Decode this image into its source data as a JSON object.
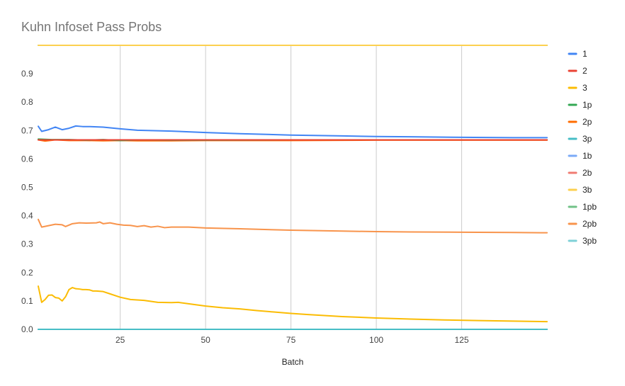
{
  "chart_data": {
    "type": "line",
    "title": "Kuhn Infoset Pass Probs",
    "xlabel": "Batch",
    "ylabel": "",
    "xlim": [
      1,
      150
    ],
    "ylim": [
      0,
      1
    ],
    "x_ticks": [
      25,
      50,
      75,
      100,
      125
    ],
    "y_ticks": [
      0.0,
      0.1,
      0.2,
      0.3,
      0.4,
      0.5,
      0.6,
      0.7,
      0.8,
      0.9
    ],
    "grid": "vertical",
    "legend_position": "right",
    "series": [
      {
        "name": "1",
        "color": "#4285f4",
        "points": [
          [
            1,
            0.715
          ],
          [
            2,
            0.697
          ],
          [
            4,
            0.703
          ],
          [
            6,
            0.712
          ],
          [
            8,
            0.703
          ],
          [
            10,
            0.708
          ],
          [
            12,
            0.716
          ],
          [
            14,
            0.714
          ],
          [
            16,
            0.714
          ],
          [
            20,
            0.712
          ],
          [
            25,
            0.706
          ],
          [
            30,
            0.701
          ],
          [
            40,
            0.698
          ],
          [
            50,
            0.693
          ],
          [
            60,
            0.689
          ],
          [
            75,
            0.684
          ],
          [
            90,
            0.681
          ],
          [
            100,
            0.679
          ],
          [
            110,
            0.678
          ],
          [
            125,
            0.676
          ],
          [
            140,
            0.675
          ],
          [
            150,
            0.675
          ]
        ]
      },
      {
        "name": "2",
        "color": "#ea4335",
        "points": [
          [
            1,
            0.667
          ],
          [
            50,
            0.667
          ],
          [
            100,
            0.667
          ],
          [
            150,
            0.667
          ]
        ]
      },
      {
        "name": "3",
        "color": "#fbbc04",
        "points": [
          [
            1,
            0.152
          ],
          [
            2,
            0.095
          ],
          [
            3,
            0.105
          ],
          [
            4,
            0.12
          ],
          [
            5,
            0.121
          ],
          [
            6,
            0.112
          ],
          [
            7,
            0.11
          ],
          [
            8,
            0.1
          ],
          [
            9,
            0.115
          ],
          [
            10,
            0.14
          ],
          [
            11,
            0.147
          ],
          [
            12,
            0.143
          ],
          [
            13,
            0.142
          ],
          [
            14,
            0.14
          ],
          [
            15,
            0.14
          ],
          [
            16,
            0.139
          ],
          [
            17,
            0.135
          ],
          [
            18,
            0.135
          ],
          [
            20,
            0.133
          ],
          [
            22,
            0.125
          ],
          [
            25,
            0.113
          ],
          [
            28,
            0.105
          ],
          [
            32,
            0.102
          ],
          [
            36,
            0.095
          ],
          [
            40,
            0.094
          ],
          [
            42,
            0.095
          ],
          [
            45,
            0.09
          ],
          [
            50,
            0.082
          ],
          [
            55,
            0.076
          ],
          [
            60,
            0.072
          ],
          [
            65,
            0.066
          ],
          [
            70,
            0.061
          ],
          [
            75,
            0.056
          ],
          [
            80,
            0.052
          ],
          [
            90,
            0.045
          ],
          [
            100,
            0.04
          ],
          [
            110,
            0.036
          ],
          [
            120,
            0.033
          ],
          [
            130,
            0.031
          ],
          [
            140,
            0.029
          ],
          [
            150,
            0.027
          ]
        ]
      },
      {
        "name": "1p",
        "color": "#34a853",
        "points": [
          [
            1,
            0.67
          ],
          [
            5,
            0.668
          ],
          [
            10,
            0.668
          ],
          [
            15,
            0.666
          ],
          [
            20,
            0.668
          ],
          [
            25,
            0.665
          ],
          [
            30,
            0.667
          ],
          [
            40,
            0.666
          ],
          [
            50,
            0.666
          ],
          [
            75,
            0.667
          ],
          [
            100,
            0.667
          ],
          [
            125,
            0.667
          ],
          [
            150,
            0.667
          ]
        ]
      },
      {
        "name": "2p",
        "color": "#ff6d01",
        "points": [
          [
            1,
            0.667
          ],
          [
            3,
            0.663
          ],
          [
            6,
            0.667
          ],
          [
            10,
            0.665
          ],
          [
            15,
            0.665
          ],
          [
            20,
            0.664
          ],
          [
            25,
            0.665
          ],
          [
            30,
            0.664
          ],
          [
            40,
            0.664
          ],
          [
            50,
            0.665
          ],
          [
            75,
            0.665
          ],
          [
            100,
            0.666
          ],
          [
            125,
            0.666
          ],
          [
            150,
            0.666
          ]
        ]
      },
      {
        "name": "3p",
        "color": "#46bdc6",
        "points": [
          [
            1,
            0.0
          ],
          [
            150,
            0.0
          ]
        ]
      },
      {
        "name": "1b",
        "color": "#7baaf7",
        "points": [
          [
            1,
            0.0
          ],
          [
            150,
            0.0
          ]
        ]
      },
      {
        "name": "2b",
        "color": "#f07b72",
        "points": [
          [
            1,
            0.667
          ],
          [
            50,
            0.667
          ],
          [
            100,
            0.667
          ],
          [
            150,
            0.667
          ]
        ]
      },
      {
        "name": "3b",
        "color": "#fcd04f",
        "points": [
          [
            1,
            1.0
          ],
          [
            150,
            1.0
          ]
        ]
      },
      {
        "name": "1pb",
        "color": "#71c287",
        "points": [
          [
            1,
            1.0
          ],
          [
            150,
            1.0
          ]
        ]
      },
      {
        "name": "2pb",
        "color": "#f8944c",
        "points": [
          [
            1,
            0.387
          ],
          [
            2,
            0.36
          ],
          [
            4,
            0.365
          ],
          [
            6,
            0.37
          ],
          [
            8,
            0.368
          ],
          [
            9,
            0.362
          ],
          [
            11,
            0.372
          ],
          [
            13,
            0.375
          ],
          [
            15,
            0.374
          ],
          [
            18,
            0.375
          ],
          [
            19,
            0.378
          ],
          [
            20,
            0.372
          ],
          [
            22,
            0.375
          ],
          [
            24,
            0.37
          ],
          [
            26,
            0.367
          ],
          [
            28,
            0.366
          ],
          [
            30,
            0.362
          ],
          [
            32,
            0.365
          ],
          [
            34,
            0.36
          ],
          [
            36,
            0.363
          ],
          [
            38,
            0.358
          ],
          [
            40,
            0.36
          ],
          [
            45,
            0.36
          ],
          [
            50,
            0.357
          ],
          [
            60,
            0.354
          ],
          [
            75,
            0.349
          ],
          [
            90,
            0.346
          ],
          [
            100,
            0.344
          ],
          [
            110,
            0.343
          ],
          [
            125,
            0.342
          ],
          [
            140,
            0.341
          ],
          [
            150,
            0.34
          ]
        ]
      },
      {
        "name": "3pb",
        "color": "#7ed1d7",
        "points": [
          [
            1,
            0.0
          ],
          [
            150,
            0.0
          ]
        ]
      }
    ]
  }
}
